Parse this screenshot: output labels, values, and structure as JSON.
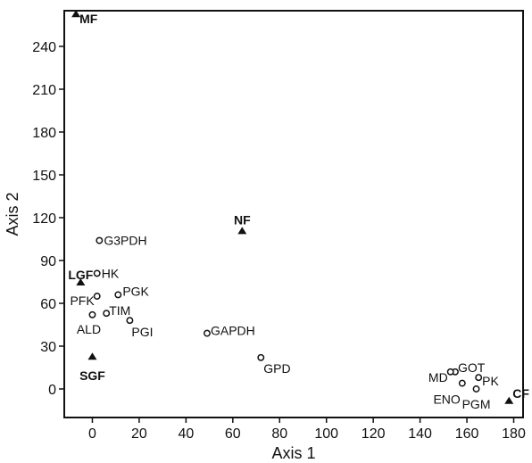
{
  "chart_data": {
    "type": "scatter",
    "title": "",
    "xlabel": "Axis 1",
    "ylabel": "Axis 2",
    "xlim": [
      -12,
      184
    ],
    "ylim": [
      -20,
      265
    ],
    "x_ticks": [
      0,
      20,
      40,
      60,
      80,
      100,
      120,
      140,
      160,
      180
    ],
    "y_ticks": [
      0,
      30,
      60,
      90,
      120,
      150,
      180,
      210,
      240
    ],
    "grid": false,
    "legend": "none",
    "series": [
      {
        "marker": "triangle",
        "points": [
          {
            "label": "MF",
            "x": -7,
            "y": 263
          },
          {
            "label": "NF",
            "x": 64,
            "y": 111
          },
          {
            "label": "LGF",
            "x": -5,
            "y": 75
          },
          {
            "label": "SGF",
            "x": 0,
            "y": 23
          },
          {
            "label": "CF",
            "x": 178,
            "y": -8
          }
        ]
      },
      {
        "marker": "open-circle",
        "points": [
          {
            "label": "G3PDH",
            "x": 3,
            "y": 104
          },
          {
            "label": "HK",
            "x": 2,
            "y": 81
          },
          {
            "label": "PGK",
            "x": 11,
            "y": 66
          },
          {
            "label": "PFK",
            "x": 2,
            "y": 65
          },
          {
            "label": "TIM",
            "x": 6,
            "y": 53
          },
          {
            "label": "ALD",
            "x": 0,
            "y": 52
          },
          {
            "label": "PGI",
            "x": 16,
            "y": 48
          },
          {
            "label": "GAPDH",
            "x": 49,
            "y": 39
          },
          {
            "label": "GPD",
            "x": 72,
            "y": 22
          },
          {
            "label": "GOT",
            "x": 155,
            "y": 12
          },
          {
            "label": "MD",
            "x": 153,
            "y": 12
          },
          {
            "label": "PK",
            "x": 165,
            "y": 8
          },
          {
            "label": "ENO",
            "x": 158,
            "y": 4
          },
          {
            "label": "PGM",
            "x": 164,
            "y": 0
          }
        ]
      }
    ]
  },
  "colors": {
    "ink": "#111111",
    "background": "#ffffff"
  }
}
